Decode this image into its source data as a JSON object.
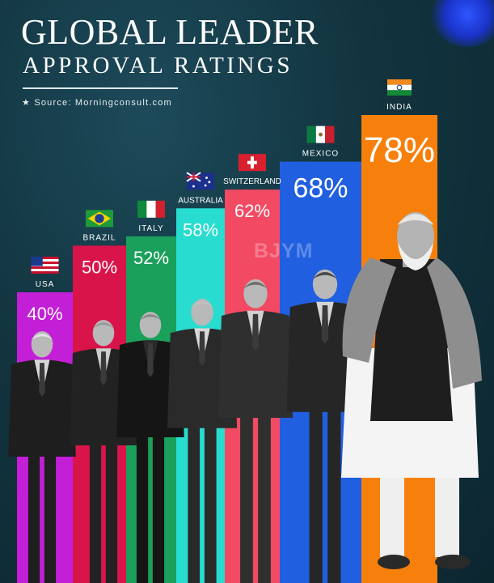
{
  "title": "GLOBAL LEADER",
  "subtitle": "APPROVAL RATINGS",
  "source": "★ Source: Morningconsult.com",
  "watermark": "BJYM",
  "chart_data": {
    "type": "bar",
    "unit": "%",
    "categories": [
      "USA",
      "BRAZIL",
      "ITALY",
      "AUSTRALIA",
      "SWITZERLAND",
      "MEXICO",
      "INDIA"
    ],
    "values": [
      40,
      50,
      52,
      58,
      62,
      68,
      78
    ],
    "data_labels": [
      "40%",
      "50%",
      "52%",
      "58%",
      "62%",
      "68%",
      "78%"
    ],
    "colors": [
      "#c21fd6",
      "#d8144a",
      "#1aa05a",
      "#28dccf",
      "#f24a63",
      "#1f5fe0",
      "#f7800d"
    ],
    "flags": [
      "us-flag",
      "brazil-flag",
      "italy-flag",
      "australia-flag",
      "switzerland-flag",
      "mexico-flag",
      "india-flag"
    ],
    "leader_images": [
      "leader-photo",
      "leader-photo",
      "leader-photo",
      "leader-photo",
      "leader-photo",
      "leader-photo",
      "leader-photo"
    ]
  }
}
